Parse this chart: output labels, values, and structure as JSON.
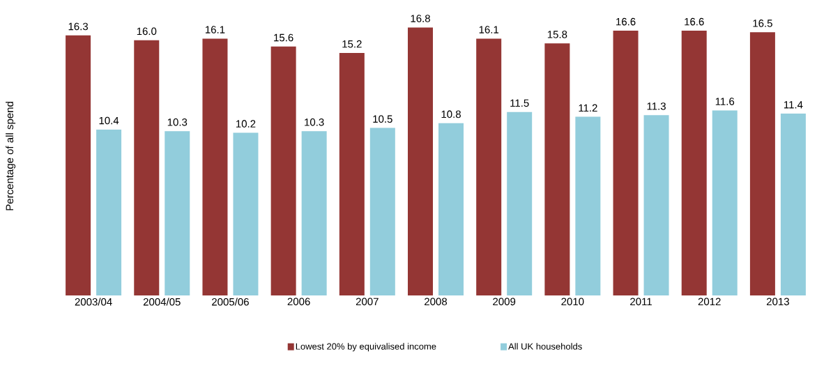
{
  "chart_data": {
    "type": "bar",
    "ylabel": "Percentage of all spend",
    "categories": [
      "2003/04",
      "2004/05",
      "2005/06",
      "2006",
      "2007",
      "2008",
      "2009",
      "2010",
      "2011",
      "2012",
      "2013"
    ],
    "series": [
      {
        "name": "Lowest 20% by equivalised income",
        "color": "#943634",
        "values": [
          16.3,
          16.0,
          16.1,
          15.6,
          15.2,
          16.8,
          16.1,
          15.8,
          16.6,
          16.6,
          16.5
        ],
        "value_labels": [
          "16.3",
          "16.0",
          "16.1",
          "15.6",
          "15.2",
          "16.8",
          "16.1",
          "15.8",
          "16.6",
          "16.6",
          "16.5"
        ]
      },
      {
        "name": "All UK households",
        "color": "#92cddc",
        "values": [
          10.4,
          10.3,
          10.2,
          10.3,
          10.5,
          10.8,
          11.5,
          11.2,
          11.3,
          11.6,
          11.4
        ],
        "value_labels": [
          "10.4",
          "10.3",
          "10.2",
          "10.3",
          "10.5",
          "10.8",
          "11.5",
          "11.2",
          "11.3",
          "11.6",
          "11.4"
        ]
      }
    ],
    "legend": "bottom"
  }
}
